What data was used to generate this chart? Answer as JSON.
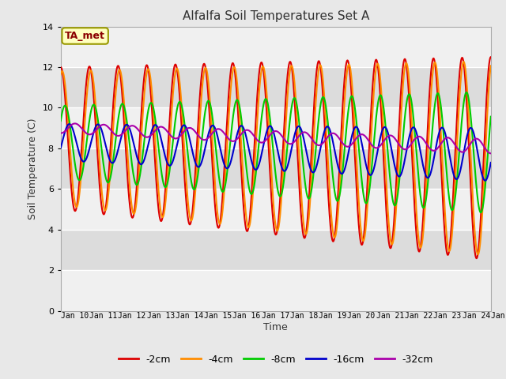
{
  "title": "Alfalfa Soil Temperatures Set A",
  "xlabel": "Time",
  "ylabel": "Soil Temperature (C)",
  "ylim": [
    0,
    14
  ],
  "annotation_text": "TA_met",
  "annotation_color": "#8B0000",
  "annotation_bg": "#FFFFC0",
  "annotation_border": "#999900",
  "series": {
    "-2cm": {
      "color": "#DD0000",
      "label": "-2cm"
    },
    "-4cm": {
      "color": "#FF8C00",
      "label": "-4cm"
    },
    "-8cm": {
      "color": "#00CC00",
      "label": "-8cm"
    },
    "-16cm": {
      "color": "#0000CC",
      "label": "-16cm"
    },
    "-32cm": {
      "color": "#AA00AA",
      "label": "-32cm"
    }
  },
  "legend_order": [
    "-2cm",
    "-4cm",
    "-8cm",
    "-16cm",
    "-32cm"
  ],
  "fig_bg_color": "#E8E8E8",
  "plot_bg_light": "#F0F0F0",
  "plot_bg_dark": "#DCDCDC",
  "grid_color": "#FFFFFF"
}
